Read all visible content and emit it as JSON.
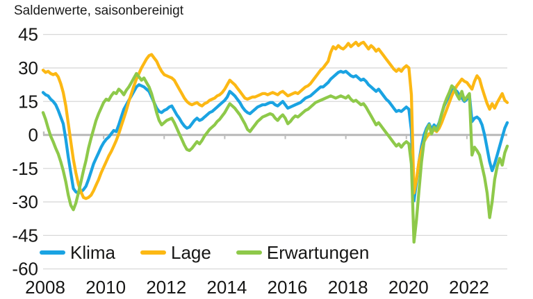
{
  "title": "Saldenwerte, saisonbereinigt",
  "colors": {
    "klima": "#1aa3e2",
    "lage": "#fcb814",
    "erwartungen": "#8ec94a",
    "gridline": "#d8d8d8",
    "zero_line": "#bdbdbd",
    "text": "#161615"
  },
  "legend": [
    {
      "key": "klima",
      "label": "Klima"
    },
    {
      "key": "lage",
      "label": "Lage"
    },
    {
      "key": "erwartungen",
      "label": "Erwartungen"
    }
  ],
  "axes": {
    "y_ticks": [
      45,
      30,
      15,
      0,
      -15,
      -30,
      -45,
      -60
    ],
    "x_ticks": [
      2008,
      2010,
      2012,
      2014,
      2016,
      2018,
      2020,
      2022
    ]
  },
  "chart_data": {
    "type": "line",
    "title": "Saldenwerte, saisonbereinigt",
    "xlabel": "",
    "ylabel": "",
    "ylim": [
      -60,
      45
    ],
    "xlim_years": [
      2008.0,
      2023.42
    ],
    "grid": true,
    "legend_position": "bottom-left-inside",
    "x_unit": "monthly, decimal years from start_year",
    "start_year": 2008,
    "step_months": 1,
    "series": [
      {
        "name": "Klima",
        "color_key": "klima",
        "values": [
          19,
          18,
          17.5,
          16,
          15,
          13.5,
          11,
          8,
          5,
          -2,
          -10,
          -17,
          -24,
          -25.5,
          -26,
          -25.5,
          -24.5,
          -23,
          -20,
          -16.5,
          -13,
          -10.5,
          -8,
          -5.5,
          -3.5,
          -2,
          -1,
          0.5,
          2,
          1.5,
          4.5,
          8,
          11.5,
          13.5,
          15.5,
          17.5,
          19.5,
          21.5,
          22.5,
          22,
          21.5,
          20.5,
          19.5,
          17,
          14.5,
          12,
          10.5,
          10,
          11,
          11.5,
          12.5,
          13,
          11,
          9,
          7.5,
          5.5,
          4,
          3,
          3.5,
          5,
          6.5,
          7.5,
          6.5,
          7,
          8,
          9,
          10,
          10.5,
          11.5,
          12.5,
          13.5,
          14.5,
          15.5,
          17,
          19.5,
          18.5,
          17.5,
          16,
          14.5,
          12.5,
          11,
          10,
          9.5,
          10.5,
          11.5,
          12.5,
          13,
          13.5,
          13.5,
          14,
          14.5,
          14.5,
          13.5,
          13,
          14,
          15,
          13.5,
          12,
          12.5,
          13,
          13.5,
          14,
          14.5,
          15.5,
          16.5,
          17,
          17.5,
          18.5,
          19.5,
          20.5,
          21.5,
          21.5,
          22.5,
          23.5,
          25,
          26,
          27,
          28,
          28.5,
          28,
          28.5,
          27.5,
          26.5,
          26,
          26.5,
          25.5,
          24.5,
          25,
          24,
          22.5,
          21.5,
          20.5,
          19.5,
          20.5,
          19,
          17.5,
          16,
          15,
          13.5,
          12,
          10.5,
          11,
          10.5,
          11.5,
          12.5,
          11.5,
          2,
          -29.5,
          -21,
          -12,
          -5,
          0,
          3,
          5,
          2.5,
          4.5,
          3,
          5.5,
          9.5,
          13,
          15.5,
          17.5,
          20,
          20.5,
          19.5,
          18,
          16.5,
          15,
          16,
          18,
          6,
          7.5,
          8,
          7,
          4.5,
          0,
          -6,
          -12,
          -16,
          -13,
          -9,
          -5,
          -1,
          3,
          5.5
        ]
      },
      {
        "name": "Lage",
        "color_key": "lage",
        "values": [
          29,
          28,
          28.5,
          27.5,
          27,
          27.5,
          26,
          23,
          19,
          13,
          5,
          -3,
          -11,
          -17,
          -22,
          -25.5,
          -28,
          -28.5,
          -28,
          -27,
          -25,
          -22.5,
          -20,
          -17,
          -14.5,
          -12,
          -9.5,
          -7.5,
          -5,
          -2.5,
          0.5,
          4,
          7.5,
          11,
          15,
          18.5,
          22,
          25,
          27.5,
          30,
          32,
          34,
          35.5,
          36,
          34.5,
          33,
          30.5,
          28.5,
          27,
          26.5,
          26,
          25.5,
          24.5,
          22.5,
          20.5,
          18.5,
          16.5,
          15,
          14,
          13.5,
          14,
          14.5,
          13.5,
          13,
          14,
          14.5,
          15.5,
          16,
          16.5,
          17.5,
          18,
          19,
          20.5,
          22.5,
          24.5,
          23.5,
          22.5,
          21,
          19.5,
          18,
          16.5,
          16,
          16.5,
          17,
          17,
          17.5,
          18,
          18.5,
          18.5,
          18,
          18.5,
          19,
          18.5,
          18,
          19,
          19.5,
          18.5,
          17.5,
          18,
          18.5,
          19,
          18.5,
          19.5,
          20.5,
          21.5,
          22,
          23,
          24.5,
          26,
          27.5,
          29,
          30,
          31.5,
          33,
          37,
          39.5,
          38.5,
          40,
          39,
          38.5,
          39.5,
          41,
          39.5,
          40.5,
          41.5,
          40,
          41,
          41.5,
          40,
          38.5,
          40,
          39,
          37.5,
          38.5,
          37,
          35.5,
          34,
          32.5,
          31,
          29.5,
          28.5,
          29.5,
          28.5,
          30,
          31,
          30,
          18,
          -26,
          -20,
          -12,
          -7,
          -3,
          -1,
          0.5,
          1,
          2.5,
          1.5,
          3,
          5.5,
          8.5,
          11.5,
          14.5,
          17.5,
          20,
          22,
          23.5,
          25,
          24,
          23.5,
          22,
          20.5,
          24,
          26.5,
          25,
          21,
          17.5,
          14,
          11.5,
          14,
          12,
          14.5,
          16.5,
          18.5,
          15.5,
          14.5
        ]
      },
      {
        "name": "Erwartungen",
        "color_key": "erwartungen",
        "values": [
          10,
          7,
          3,
          -0.5,
          -3,
          -6,
          -8.5,
          -12,
          -16,
          -21,
          -27,
          -31.5,
          -33.5,
          -30.5,
          -26,
          -21,
          -16,
          -11.5,
          -6,
          -1.5,
          2.5,
          6.5,
          9.5,
          12,
          14.5,
          16,
          15.5,
          17.5,
          19,
          18.5,
          20.5,
          19.5,
          18,
          20,
          21.5,
          23.5,
          25.5,
          27.5,
          26,
          24.5,
          25.5,
          23.5,
          21.5,
          18.5,
          14.5,
          10,
          6.5,
          4.5,
          5.5,
          6.5,
          7,
          7.5,
          5.5,
          3,
          0.5,
          -2,
          -4.5,
          -6.5,
          -7,
          -6,
          -4.5,
          -3,
          -4,
          -2.5,
          -0.5,
          1,
          2.5,
          3.5,
          4.5,
          6,
          7,
          8.5,
          10,
          12,
          14,
          13,
          12,
          10.5,
          9,
          7,
          5,
          2.5,
          1.5,
          3,
          4.5,
          6,
          7,
          8,
          8.5,
          9,
          9.5,
          9,
          7.5,
          6.5,
          8,
          9,
          7.5,
          5,
          6,
          7.5,
          8.5,
          8,
          9,
          10,
          11,
          11.5,
          12.5,
          13.5,
          14.5,
          15,
          15.5,
          16,
          16.5,
          17,
          17.5,
          17,
          16.5,
          17,
          17.5,
          17,
          16.5,
          17.5,
          16,
          15,
          15.5,
          14.5,
          13.5,
          14,
          12.5,
          10.5,
          8.5,
          6.5,
          4.5,
          5.5,
          4,
          2.5,
          1,
          -0.5,
          -2,
          -3.5,
          -5,
          -4,
          -5.5,
          -4,
          -3,
          -4,
          -13,
          -48,
          -38,
          -25,
          -12,
          -3,
          2,
          4.5,
          0.5,
          3.5,
          2,
          5,
          9.5,
          13.5,
          16.5,
          19,
          22,
          21,
          18,
          16,
          19.5,
          15.5,
          17,
          18.5,
          -9,
          -5.5,
          -7,
          -9,
          -14,
          -19,
          -26,
          -37,
          -30,
          -20,
          -14,
          -10.5,
          -13.5,
          -8,
          -5
        ]
      }
    ]
  }
}
